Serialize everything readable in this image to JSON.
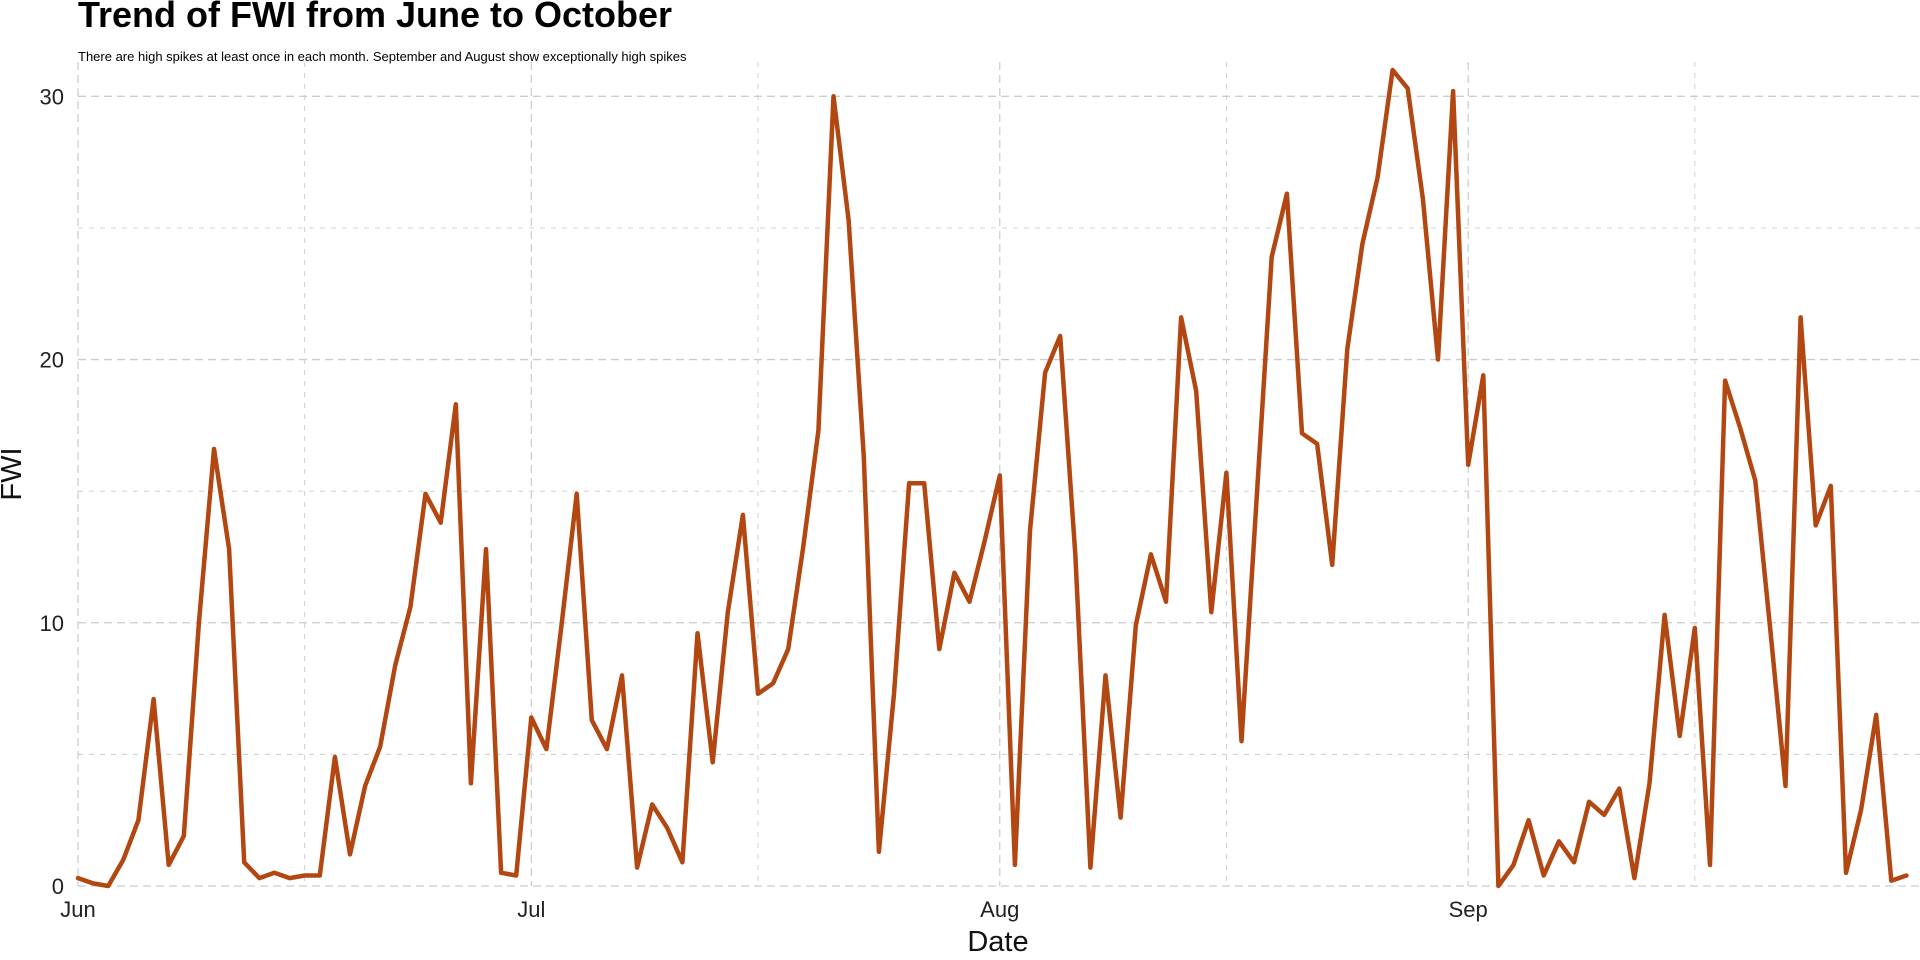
{
  "chart_data": {
    "type": "line",
    "title": "Trend of FWI from June to October",
    "subtitle": "There are high spikes at least once in each month. September and August show exceptionally high spikes",
    "xlabel": "Date",
    "ylabel": "FWI",
    "x_tick_labels": [
      "Jun",
      "Jul",
      "Aug",
      "Sep"
    ],
    "x_tick_dates": [
      "2012-06-01",
      "2012-07-01",
      "2012-08-01",
      "2012-09-01"
    ],
    "xlim": [
      "2012-06-01",
      "2012-09-30"
    ],
    "y_ticks": [
      0,
      10,
      20,
      30
    ],
    "ylim": [
      0,
      31
    ],
    "grid": true,
    "line_color": "#b34712",
    "grid_color": "#cccccc",
    "series": [
      {
        "x": [
          "2012-06-01",
          "2012-06-02",
          "2012-06-03",
          "2012-06-04",
          "2012-06-05",
          "2012-06-06",
          "2012-06-07",
          "2012-06-08",
          "2012-06-09",
          "2012-06-10",
          "2012-06-11",
          "2012-06-12",
          "2012-06-13",
          "2012-06-14",
          "2012-06-15",
          "2012-06-16",
          "2012-06-17",
          "2012-06-18",
          "2012-06-19",
          "2012-06-20",
          "2012-06-21",
          "2012-06-22",
          "2012-06-23",
          "2012-06-24",
          "2012-06-25",
          "2012-06-26",
          "2012-06-27",
          "2012-06-28",
          "2012-06-29",
          "2012-06-30",
          "2012-07-01",
          "2012-07-02",
          "2012-07-03",
          "2012-07-04",
          "2012-07-05",
          "2012-07-06",
          "2012-07-07",
          "2012-07-08",
          "2012-07-09",
          "2012-07-10",
          "2012-07-11",
          "2012-07-12",
          "2012-07-13",
          "2012-07-14",
          "2012-07-15",
          "2012-07-16",
          "2012-07-17",
          "2012-07-18",
          "2012-07-19",
          "2012-07-20",
          "2012-07-21",
          "2012-07-22",
          "2012-07-23",
          "2012-07-24",
          "2012-07-25",
          "2012-07-26",
          "2012-07-27",
          "2012-07-28",
          "2012-07-29",
          "2012-07-30",
          "2012-07-31",
          "2012-08-01",
          "2012-08-02",
          "2012-08-03",
          "2012-08-04",
          "2012-08-05",
          "2012-08-06",
          "2012-08-07",
          "2012-08-08",
          "2012-08-09",
          "2012-08-10",
          "2012-08-11",
          "2012-08-12",
          "2012-08-13",
          "2012-08-14",
          "2012-08-15",
          "2012-08-16",
          "2012-08-17",
          "2012-08-18",
          "2012-08-19",
          "2012-08-20",
          "2012-08-21",
          "2012-08-22",
          "2012-08-23",
          "2012-08-24",
          "2012-08-25",
          "2012-08-26",
          "2012-08-27",
          "2012-08-28",
          "2012-08-29",
          "2012-08-30",
          "2012-08-31",
          "2012-09-01",
          "2012-09-02",
          "2012-09-03",
          "2012-09-04",
          "2012-09-05",
          "2012-09-06",
          "2012-09-07",
          "2012-09-08",
          "2012-09-09",
          "2012-09-10",
          "2012-09-11",
          "2012-09-12",
          "2012-09-13",
          "2012-09-14",
          "2012-09-15",
          "2012-09-16",
          "2012-09-17",
          "2012-09-18",
          "2012-09-19",
          "2012-09-20",
          "2012-09-21",
          "2012-09-22",
          "2012-09-23",
          "2012-09-24",
          "2012-09-25",
          "2012-09-26",
          "2012-09-27",
          "2012-09-28",
          "2012-09-29",
          "2012-09-30"
        ],
        "y": [
          0.3,
          0.1,
          0.0,
          1.0,
          2.5,
          7.1,
          0.8,
          1.9,
          10.0,
          16.6,
          12.8,
          0.9,
          0.3,
          0.5,
          0.3,
          0.4,
          0.4,
          4.9,
          1.2,
          3.8,
          5.3,
          8.4,
          10.6,
          14.9,
          13.8,
          18.3,
          3.9,
          12.8,
          0.5,
          0.4,
          6.4,
          5.2,
          9.9,
          14.9,
          6.3,
          5.2,
          8.0,
          0.7,
          3.1,
          2.2,
          0.9,
          9.6,
          4.7,
          10.4,
          14.1,
          7.3,
          7.7,
          9.0,
          12.9,
          17.3,
          30.0,
          25.3,
          16.3,
          1.3,
          7.3,
          15.3,
          15.3,
          9.0,
          11.9,
          10.8,
          13.1,
          15.6,
          0.8,
          13.5,
          19.5,
          20.9,
          12.6,
          0.7,
          8.0,
          2.6,
          9.9,
          12.6,
          10.8,
          21.6,
          18.8,
          10.4,
          15.7,
          5.5,
          14.7,
          23.9,
          26.3,
          17.2,
          16.8,
          12.2,
          20.4,
          24.4,
          26.9,
          31.0,
          30.3,
          26.1,
          20.0,
          30.2,
          16.0,
          19.4,
          0.0,
          0.8,
          2.5,
          0.4,
          1.7,
          0.9,
          3.2,
          2.7,
          3.7,
          0.3,
          3.9,
          10.3,
          5.7,
          9.8,
          0.8,
          19.2,
          17.4,
          15.4,
          9.7,
          3.8,
          21.6,
          13.7,
          15.2,
          0.5,
          2.9,
          6.5,
          0.2,
          0.4
        ]
      }
    ]
  }
}
